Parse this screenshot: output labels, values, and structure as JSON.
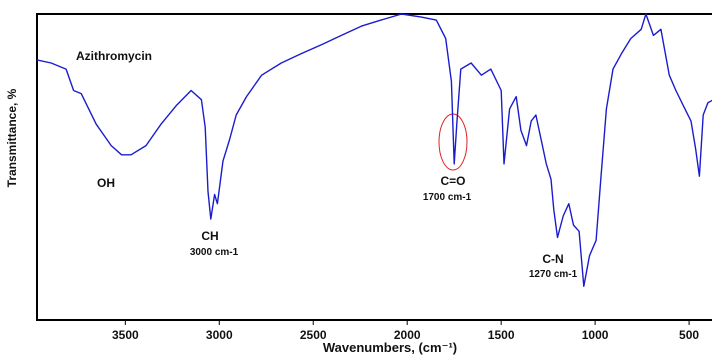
{
  "chart_data": {
    "type": "line",
    "x_label": "Wavenumbers, (cm⁻¹)",
    "y_label": "Transmittance, %",
    "annotations": [
      "Azithromycin",
      "OH",
      "CH",
      "3000 cm-1",
      "C=O",
      "1700 cm-1",
      "C-N",
      "1270 cm-1"
    ],
    "xlim": [
      3970,
      370
    ],
    "ylim": [
      0,
      100
    ],
    "xticks": [
      3500,
      3000,
      2500,
      2000,
      1500,
      1000,
      500
    ],
    "log_x": false,
    "grid": false,
    "x": [
      3970,
      3895,
      3815,
      3775,
      3735,
      3655,
      3575,
      3520,
      3470,
      3390,
      3310,
      3230,
      3150,
      3095,
      3075,
      3060,
      3045,
      3025,
      3010,
      2980,
      2945,
      2910,
      2855,
      2775,
      2670,
      2565,
      2455,
      2350,
      2245,
      2140,
      2030,
      1925,
      1845,
      1795,
      1765,
      1750,
      1735,
      1715,
      1660,
      1605,
      1555,
      1500,
      1485,
      1455,
      1420,
      1395,
      1365,
      1340,
      1315,
      1260,
      1235,
      1220,
      1200,
      1170,
      1140,
      1115,
      1085,
      1060,
      1030,
      995,
      970,
      940,
      905,
      860,
      810,
      755,
      730,
      690,
      650,
      605,
      570,
      530,
      490,
      465,
      445,
      425,
      400,
      370
    ],
    "series": [
      {
        "name": "Azithromycin",
        "color": "#1c1ccf",
        "values": [
          85,
          84,
          82,
          75,
          74,
          64,
          57,
          54,
          54,
          57,
          64,
          70,
          75,
          72,
          63,
          42,
          33,
          41,
          38,
          52,
          59,
          67,
          73,
          80,
          84,
          87,
          90,
          93,
          96,
          98,
          100,
          99,
          98,
          92,
          78,
          51,
          65,
          82,
          84,
          80,
          82,
          75,
          51,
          69,
          73,
          62,
          57,
          65,
          67,
          51,
          46,
          36,
          27,
          34,
          38,
          31,
          29,
          11,
          21,
          26,
          46,
          69,
          82,
          87,
          92,
          95,
          100,
          93,
          95,
          80,
          75,
          70,
          65,
          56,
          47,
          67,
          71,
          72
        ]
      }
    ]
  }
}
